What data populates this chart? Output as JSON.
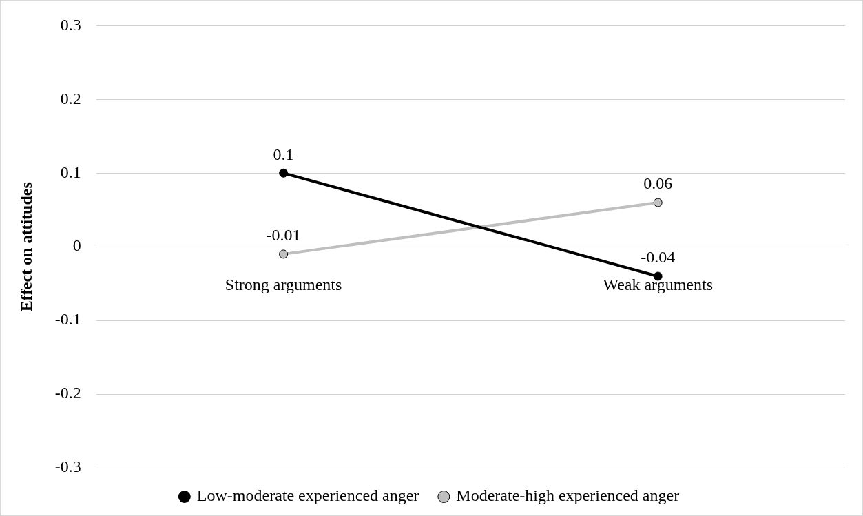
{
  "chart_data": {
    "type": "line",
    "ylabel": "Effect on attitudes",
    "categories": [
      "Strong arguments",
      "Weak arguments"
    ],
    "series": [
      {
        "name": "Low-moderate experienced anger",
        "color": "#000000",
        "values": [
          0.1,
          -0.04
        ]
      },
      {
        "name": "Moderate-high experienced anger",
        "color": "#bfbfbf",
        "values": [
          -0.01,
          0.06
        ]
      }
    ],
    "ylim": [
      -0.3,
      0.3
    ],
    "yticks": [
      -0.3,
      -0.2,
      -0.1,
      0,
      0.1,
      0.2,
      0.3
    ],
    "grid": "y",
    "legend": "bottom",
    "marker": "circle",
    "line_style": "solid",
    "data_labels": true
  }
}
